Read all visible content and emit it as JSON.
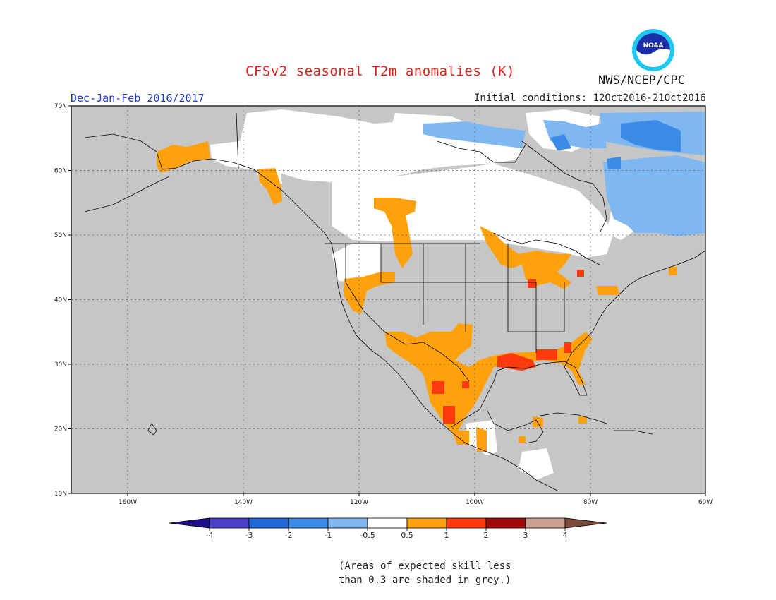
{
  "title": "CFSv2 seasonal T2m anomalies (K)",
  "season": "Dec-Jan-Feb 2016/2017",
  "initial_conditions": "Initial conditions: 12Oct2016-21Oct2016",
  "agency": "NWS/NCEP/CPC",
  "logo_text": "NOAA",
  "note_lines": [
    "(Areas of expected skill less",
    "than 0.3 are shaded in grey.)"
  ],
  "lat_ticks": [
    "70N",
    "60N",
    "50N",
    "40N",
    "30N",
    "20N",
    "10N"
  ],
  "lon_ticks": [
    "160W",
    "140W",
    "120W",
    "100W",
    "80W",
    "60W"
  ],
  "colorbar": {
    "labels": [
      "-4",
      "-3",
      "-2",
      "-1",
      "-0.5",
      "0.5",
      "1",
      "2",
      "3",
      "4"
    ],
    "colors": [
      "#1e0f8a",
      "#4a3fc8",
      "#2168d6",
      "#3a8ae6",
      "#7fb7f0",
      "#ffffff",
      "#ffa10a",
      "#ff3a0c",
      "#a10a0a",
      "#c9a08e",
      "#7a4a3a"
    ]
  },
  "map_colors": {
    "grey_no_skill": "#c6c6c6",
    "neutral": "#ffffff",
    "warm_0_5_to_1": "#ffa10a",
    "warm_1_to_2": "#ff3a0c",
    "cool_minus_1_to_minus_0_5": "#7fb7f0",
    "cool_minus_2_to_minus_1": "#3a8ae6",
    "coastline": "#000000"
  }
}
